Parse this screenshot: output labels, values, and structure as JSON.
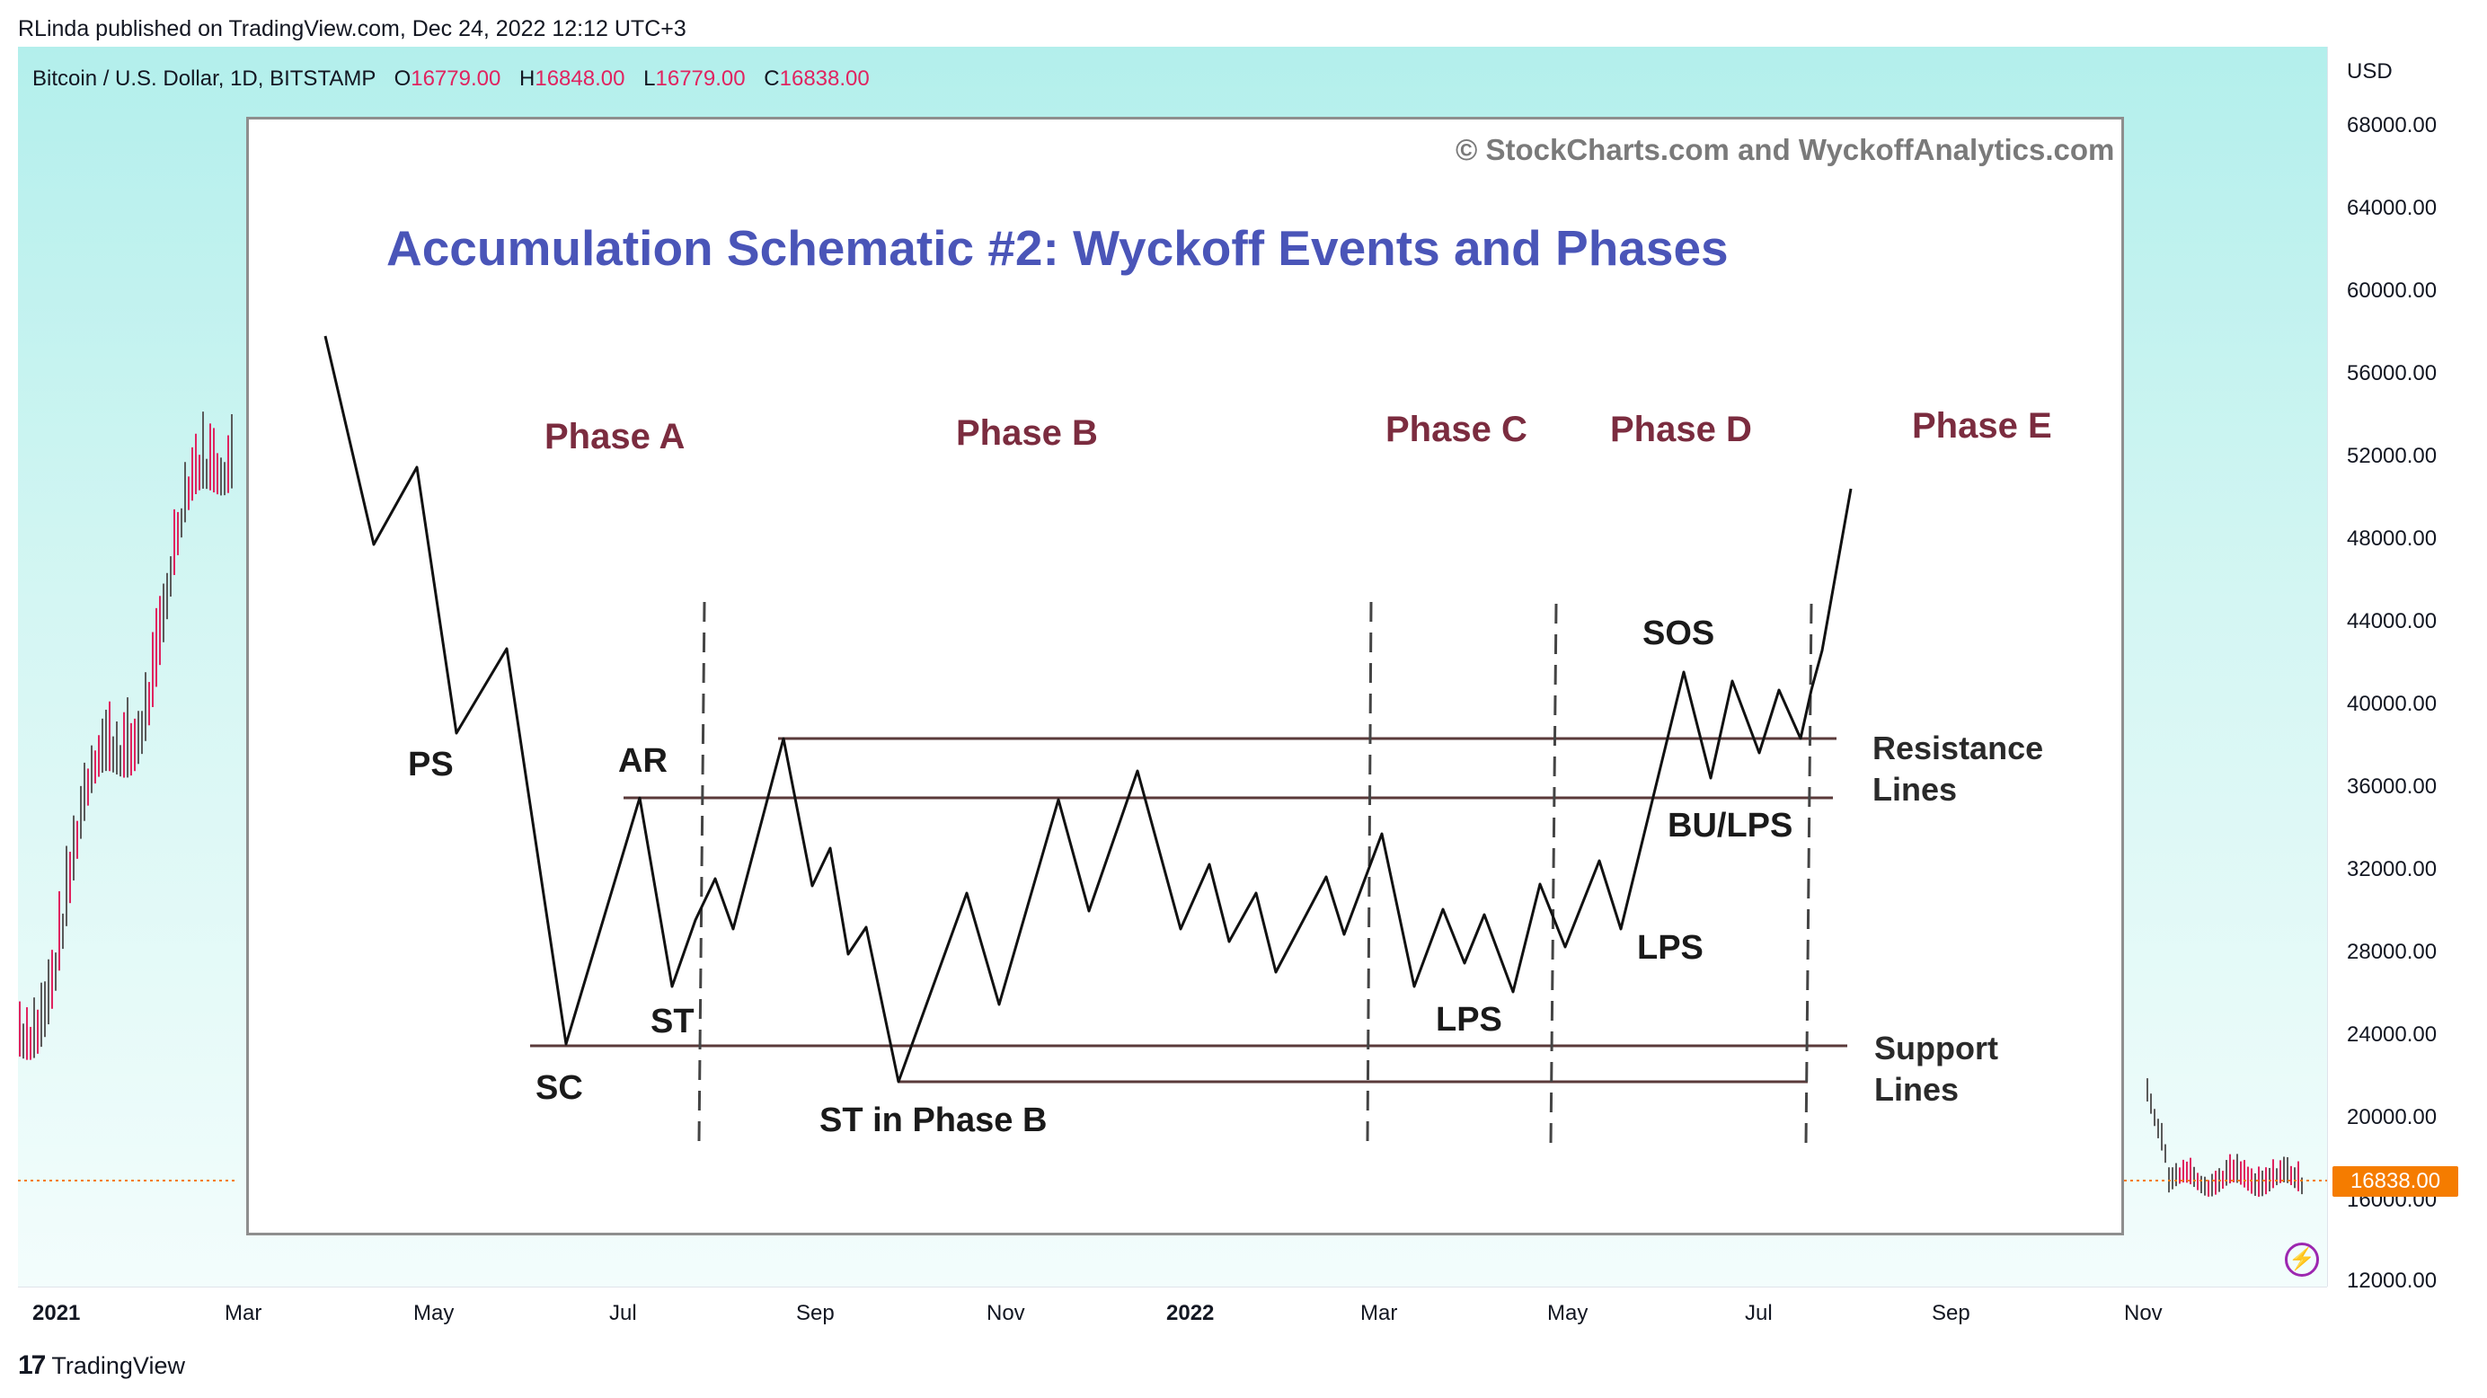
{
  "header": {
    "publisher": "RLinda published on TradingView.com, Dec 24, 2022 12:12 UTC+3"
  },
  "symbol": {
    "name": "Bitcoin / U.S. Dollar, 1D, BITSTAMP",
    "open_key": "O",
    "open": "16779.00",
    "high_key": "H",
    "high": "16848.00",
    "low_key": "L",
    "low": "16779.00",
    "close_key": "C",
    "close": "16838.00"
  },
  "price_axis": {
    "currency": "USD",
    "labels": [
      "68000.00",
      "64000.00",
      "60000.00",
      "56000.00",
      "52000.00",
      "48000.00",
      "44000.00",
      "40000.00",
      "36000.00",
      "32000.00",
      "28000.00",
      "24000.00",
      "20000.00",
      "16000.00",
      "12000.00"
    ],
    "last_price": "16838.00",
    "last_price_color": "#f57c00"
  },
  "time_axis": {
    "labels": [
      {
        "text": "2021",
        "bold": true
      },
      {
        "text": "Mar",
        "bold": false
      },
      {
        "text": "May",
        "bold": false
      },
      {
        "text": "Jul",
        "bold": false
      },
      {
        "text": "Sep",
        "bold": false
      },
      {
        "text": "Nov",
        "bold": false
      },
      {
        "text": "2022",
        "bold": true
      },
      {
        "text": "Mar",
        "bold": false
      },
      {
        "text": "May",
        "bold": false
      },
      {
        "text": "Jul",
        "bold": false
      },
      {
        "text": "Sep",
        "bold": false
      },
      {
        "text": "Nov",
        "bold": false
      }
    ]
  },
  "schematic": {
    "copyright": "© StockCharts.com and WyckoffAnalytics.com",
    "title": "Accumulation Schematic #2: Wyckoff Events and Phases",
    "phases": [
      "Phase A",
      "Phase B",
      "Phase C",
      "Phase D",
      "Phase E"
    ],
    "events": {
      "ps": "PS",
      "ar": "AR",
      "st": "ST",
      "sc": "SC",
      "st_phase_b": "ST in Phase B",
      "lps_c": "LPS",
      "lps_d": "LPS",
      "sos": "SOS",
      "bu_lps": "BU/LPS"
    },
    "resistance_label": [
      "Resistance",
      "Lines"
    ],
    "support_label": [
      "Support",
      "Lines"
    ],
    "colors": {
      "title": "#4a55b8",
      "phase": "#7b2c3f"
    }
  },
  "footer": {
    "brand": "TradingView",
    "logo_icon": "tradingview-logo-icon"
  },
  "icons": {
    "bottom_right": "lightning-icon"
  }
}
